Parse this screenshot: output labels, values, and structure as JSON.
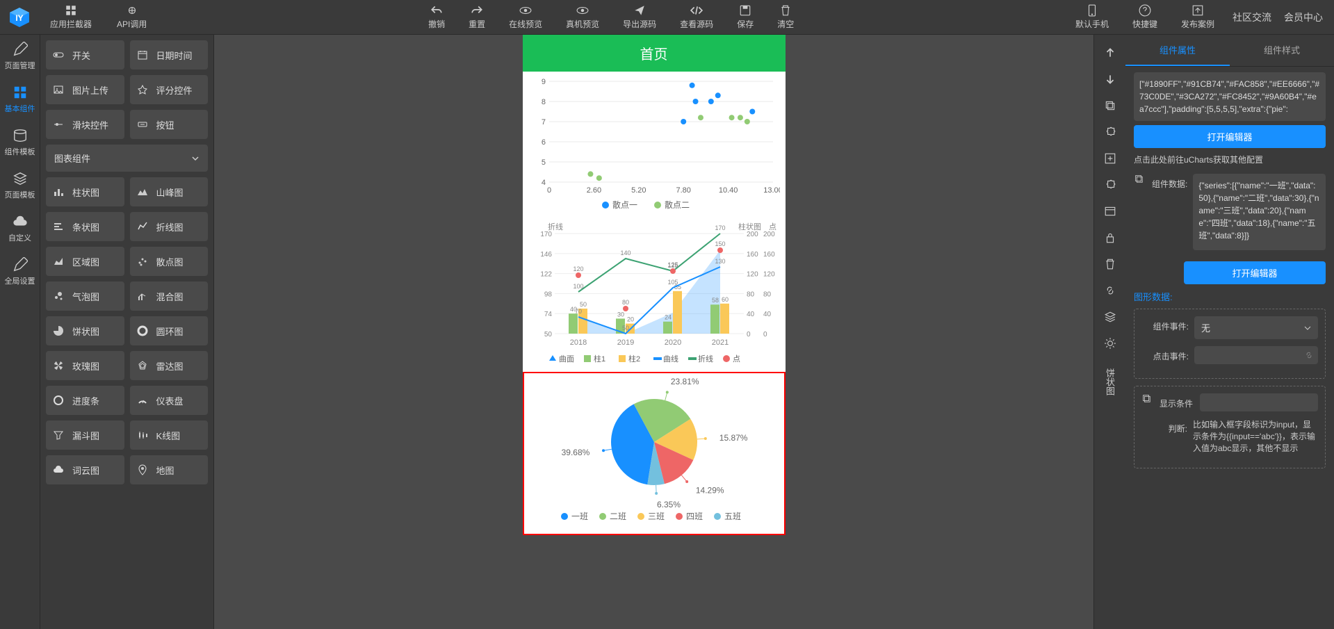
{
  "topbar": {
    "left": [
      {
        "label": "应用拦截器",
        "icon": "grid"
      },
      {
        "label": "API调用",
        "icon": "api"
      }
    ],
    "center": [
      {
        "label": "撤销",
        "icon": "undo"
      },
      {
        "label": "重置",
        "icon": "redo"
      },
      {
        "label": "在线预览",
        "icon": "eye"
      },
      {
        "label": "真机预览",
        "icon": "eye"
      },
      {
        "label": "导出源码",
        "icon": "send"
      },
      {
        "label": "查看源码",
        "icon": "code"
      },
      {
        "label": "保存",
        "icon": "save"
      },
      {
        "label": "清空",
        "icon": "trash"
      }
    ],
    "right_items": [
      {
        "label": "默认手机",
        "icon": "phone"
      },
      {
        "label": "快捷键",
        "icon": "help"
      },
      {
        "label": "发布案例",
        "icon": "publish"
      }
    ],
    "right_links": [
      "社区交流",
      "会员中心"
    ]
  },
  "leftnav": [
    {
      "label": "页面管理",
      "icon": "edit"
    },
    {
      "label": "基本组件",
      "icon": "grid",
      "active": true
    },
    {
      "label": "组件模板",
      "icon": "db"
    },
    {
      "label": "页面模板",
      "icon": "layers"
    },
    {
      "label": "自定义",
      "icon": "cloud"
    },
    {
      "label": "全局设置",
      "icon": "edit"
    }
  ],
  "basic_components": [
    {
      "label": "开关",
      "icon": "toggle"
    },
    {
      "label": "日期时间",
      "icon": "calendar"
    },
    {
      "label": "图片上传",
      "icon": "image"
    },
    {
      "label": "评分控件",
      "icon": "star"
    },
    {
      "label": "滑块控件",
      "icon": "slider"
    },
    {
      "label": "按钮",
      "icon": "button"
    }
  ],
  "chart_section_label": "图表组件",
  "chart_components": [
    {
      "label": "柱状图",
      "icon": "bar"
    },
    {
      "label": "山峰图",
      "icon": "mountain"
    },
    {
      "label": "条状图",
      "icon": "hbar"
    },
    {
      "label": "折线图",
      "icon": "line"
    },
    {
      "label": "区域图",
      "icon": "area"
    },
    {
      "label": "散点图",
      "icon": "scatter"
    },
    {
      "label": "气泡图",
      "icon": "bubble"
    },
    {
      "label": "混合图",
      "icon": "mix"
    },
    {
      "label": "饼状图",
      "icon": "pie"
    },
    {
      "label": "圆环图",
      "icon": "ring"
    },
    {
      "label": "玫瑰图",
      "icon": "rose"
    },
    {
      "label": "雷达图",
      "icon": "radar"
    },
    {
      "label": "进度条",
      "icon": "progress"
    },
    {
      "label": "仪表盘",
      "icon": "gauge"
    },
    {
      "label": "漏斗图",
      "icon": "funnel"
    },
    {
      "label": "K线图",
      "icon": "candle"
    },
    {
      "label": "词云图",
      "icon": "cloud"
    },
    {
      "label": "地图",
      "icon": "map"
    }
  ],
  "phone": {
    "header_title": "首页",
    "header_bg": "#1abd56"
  },
  "scatter_chart": {
    "type": "scatter",
    "xlim": [
      0,
      13
    ],
    "ylim": [
      4,
      9
    ],
    "xticks": [
      0,
      2.6,
      5.2,
      7.8,
      10.4,
      13
    ],
    "yticks": [
      4,
      5,
      6,
      7,
      8,
      9
    ],
    "grid_color": "#e8e8e8",
    "series": [
      {
        "name": "散点一",
        "color": "#1890ff",
        "points": [
          [
            7.8,
            7.0
          ],
          [
            8.3,
            8.8
          ],
          [
            8.5,
            8.0
          ],
          [
            9.4,
            8.0
          ],
          [
            9.8,
            8.3
          ],
          [
            11.8,
            7.5
          ]
        ]
      },
      {
        "name": "散点二",
        "color": "#91cb74",
        "points": [
          [
            2.4,
            4.4
          ],
          [
            2.9,
            4.2
          ],
          [
            8.8,
            7.2
          ],
          [
            10.6,
            7.2
          ],
          [
            11.1,
            7.2
          ],
          [
            11.5,
            7.0
          ]
        ]
      }
    ],
    "legend": [
      "散点一",
      "散点二"
    ]
  },
  "mix_chart": {
    "type": "mix",
    "categories": [
      "2018",
      "2019",
      "2020",
      "2021"
    ],
    "left_axis": {
      "title": "折线",
      "min": 50,
      "max": 170,
      "step": 24,
      "ticks": [
        50,
        74,
        98,
        122,
        146,
        170
      ]
    },
    "right_axis": {
      "title": "柱状图",
      "min": 0,
      "max": 200,
      "step": 40,
      "ticks": [
        0,
        40,
        80,
        120,
        160,
        200
      ]
    },
    "right_axis2": {
      "title": "点",
      "min": 0,
      "max": 200,
      "step": 40,
      "ticks": [
        0,
        40,
        80,
        120,
        160,
        200
      ]
    },
    "series": [
      {
        "name": "曲面",
        "type": "area",
        "color": "#1890ff",
        "data": [
          70,
          50,
          75,
          150
        ],
        "opacity": 0.25
      },
      {
        "name": "柱1",
        "type": "bar",
        "color": "#91cb74",
        "data": [
          40,
          30,
          24,
          58
        ]
      },
      {
        "name": "柱2",
        "type": "bar",
        "color": "#fac858",
        "data": [
          50,
          20,
          85,
          60
        ]
      },
      {
        "name": "曲线",
        "type": "line",
        "color": "#1890ff",
        "data": [
          70,
          50,
          105,
          130
        ]
      },
      {
        "name": "折线",
        "type": "line",
        "color": "#3ca272",
        "data": [
          100,
          140,
          125,
          170
        ]
      },
      {
        "name": "点",
        "type": "point",
        "color": "#ee6666",
        "data": [
          120,
          80,
          125,
          150
        ]
      }
    ],
    "labels": {
      "2018": [
        "40",
        "50",
        "70",
        "100",
        "120"
      ],
      "2019": [
        "30",
        "20",
        "50",
        "80",
        "140"
      ],
      "2020": [
        "24",
        "85",
        "105",
        "125"
      ],
      "2021": [
        "58",
        "60",
        "130",
        "150",
        "170"
      ]
    },
    "legend": [
      "曲面",
      "柱1",
      "柱2",
      "曲线",
      "折线",
      "点"
    ]
  },
  "pie_chart": {
    "type": "pie",
    "selected": true,
    "selection_color": "#ff0000",
    "data": [
      {
        "name": "一班",
        "value": 50,
        "pct": "39.68%",
        "color": "#1890ff"
      },
      {
        "name": "二班",
        "value": 30,
        "pct": "23.81%",
        "color": "#91cb74"
      },
      {
        "name": "三班",
        "value": 20,
        "pct": "15.87%",
        "color": "#fac858"
      },
      {
        "name": "四班",
        "value": 18,
        "pct": "14.29%",
        "color": "#ee6666"
      },
      {
        "name": "五班",
        "value": 8,
        "pct": "6.35%",
        "color": "#73c0de"
      }
    ],
    "legend": [
      "一班",
      "二班",
      "三班",
      "四班",
      "五班"
    ]
  },
  "prop_tabs": [
    "组件属性",
    "组件样式"
  ],
  "props": {
    "config_text": "[\"#1890FF\",\"#91CB74\",\"#FAC858\",\"#EE6666\",\"#73C0DE\",\"#3CA272\",\"#FC8452\",\"#9A60B4\",\"#ea7ccc\"],\"padding\":[5,5,5,5],\"extra\":{\"pie\":",
    "open_editor": "打开编辑器",
    "ucharts_hint": "点击此处前往uCharts获取其他配置",
    "data_label": "组件数据:",
    "data_text": "{\"series\":[{\"name\":\"一班\",\"data\":50},{\"name\":\"二班\",\"data\":30},{\"name\":\"三班\",\"data\":20},{\"name\":\"四班\",\"data\":18},{\"name\":\"五班\",\"data\":8}]}",
    "graphic_data_label": "图形数据:",
    "event_label": "组件事件:",
    "event_value": "无",
    "click_label": "点击事件:",
    "show_cond_label": "显示条件",
    "judge_label": "判断:",
    "judge_hint": "比如输入框字段标识为input，显示条件为{{input=='abc'}}，表示输入值为abc显示，其他不显示"
  },
  "right_toolbar_label": "饼状图"
}
